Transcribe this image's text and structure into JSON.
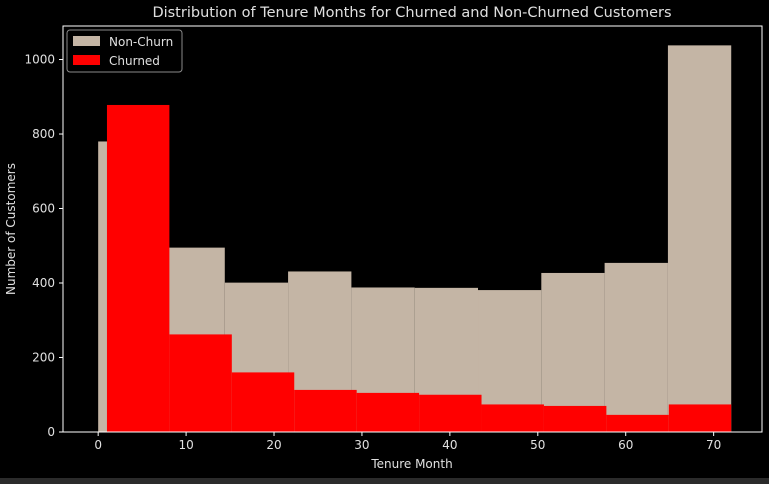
{
  "chart_data": {
    "type": "histogram",
    "title": "Distribution of Tenure Months for Churned and Non-Churned Customers",
    "xlabel": "Tenure Month",
    "ylabel": "Number of Customers",
    "xlim": [
      -4,
      75.5
    ],
    "ylim": [
      0,
      1090
    ],
    "xticks": [
      0,
      10,
      20,
      30,
      40,
      50,
      60,
      70
    ],
    "yticks": [
      0,
      200,
      400,
      600,
      800,
      1000
    ],
    "grid": false,
    "legend_position": "top-left",
    "series": [
      {
        "name": "Non-Churn",
        "color": "#c4b5a5",
        "bin_edges": [
          0,
          7.2,
          14.4,
          21.6,
          28.8,
          36,
          43.2,
          50.4,
          57.6,
          64.8,
          72
        ],
        "values": [
          780,
          495,
          401,
          431,
          388,
          387,
          381,
          427,
          454,
          1038
        ]
      },
      {
        "name": "Churned",
        "color": "#ff0000",
        "bin_edges": [
          1,
          8.1,
          15.2,
          22.3,
          29.4,
          36.5,
          43.6,
          50.7,
          57.8,
          64.9,
          72
        ],
        "values": [
          878,
          262,
          160,
          113,
          105,
          100,
          74,
          70,
          46,
          74
        ]
      }
    ]
  }
}
